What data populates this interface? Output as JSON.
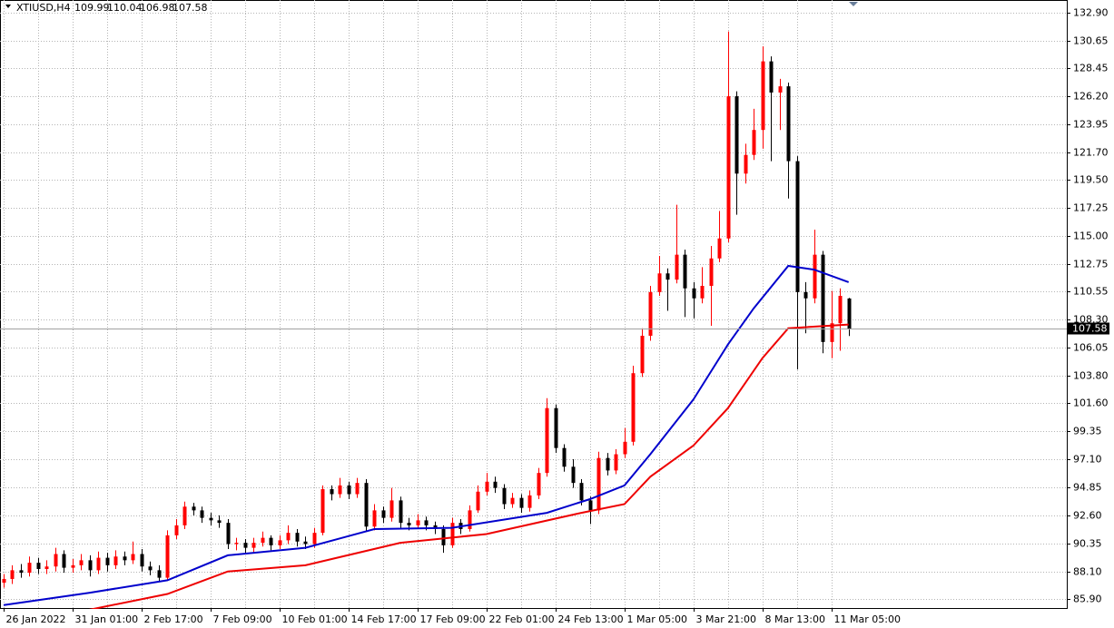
{
  "chart_data": {
    "type": "candlestick",
    "title": "XTIUSD,H4",
    "up_color": "#ff0000",
    "down_color": "#000000",
    "grid": true,
    "xlim": [
      -0.42,
      123.3
    ],
    "ylim": [
      85.17,
      133.92
    ],
    "yticks": [
      {
        "value": 132.9,
        "label": "132.90"
      },
      130.65,
      128.45,
      {
        "value": 126.2,
        "label": "126.20"
      },
      123.95,
      {
        "value": 121.7,
        "label": "121.70"
      },
      {
        "value": 119.5,
        "label": "119.50"
      },
      117.25,
      {
        "value": 115,
        "label": "115.00"
      },
      112.75,
      110.55,
      {
        "value": 108.3,
        "label": "108.30"
      },
      106.05,
      {
        "value": 103.8,
        "label": "103.80"
      },
      {
        "value": 101.6,
        "label": "101.60"
      },
      99.35,
      {
        "value": 97.1,
        "label": "97.10"
      },
      94.85,
      {
        "value": 92.6,
        "label": "92.60"
      },
      90.35,
      {
        "value": 88.1,
        "label": "88.10"
      },
      {
        "value": 85.9,
        "label": "85.90"
      }
    ],
    "categories": [
      "26 Jan 2022",
      null,
      null,
      null,
      null,
      null,
      null,
      null,
      "31 Jan 01:00",
      null,
      null,
      null,
      null,
      null,
      null,
      null,
      "2 Feb 17:00",
      null,
      null,
      null,
      null,
      null,
      null,
      null,
      "7 Feb 09:00",
      null,
      null,
      null,
      null,
      null,
      null,
      null,
      "10 Feb 01:00",
      null,
      null,
      null,
      null,
      null,
      null,
      null,
      "14 Feb 17:00",
      null,
      null,
      null,
      null,
      null,
      null,
      null,
      "17 Feb 09:00",
      null,
      null,
      null,
      null,
      null,
      null,
      null,
      "22 Feb 01:00",
      null,
      null,
      null,
      null,
      null,
      null,
      null,
      "24 Feb 13:00",
      null,
      null,
      null,
      null,
      null,
      null,
      null,
      "1 Mar 05:00",
      null,
      null,
      null,
      null,
      null,
      null,
      null,
      "3 Mar 21:00",
      null,
      null,
      null,
      null,
      null,
      null,
      null,
      "8 Mar 13:00",
      null,
      null,
      null,
      null,
      null,
      null,
      null,
      "11 Mar 05:00",
      null,
      null
    ],
    "open": [
      87.2,
      87.5,
      88.2,
      88.0,
      88.8,
      88.3,
      88.5,
      89.5,
      88.4,
      88.6,
      89.0,
      88.2,
      89.2,
      88.6,
      89.3,
      89.0,
      89.5,
      88.5,
      88.2,
      87.6,
      91.0,
      91.8,
      93.3,
      93.0,
      92.4,
      92.2,
      92.0,
      90.3,
      90.4,
      90.0,
      90.4,
      90.8,
      90.2,
      90.6,
      91.2,
      90.5,
      90.3,
      91.2,
      94.7,
      94.3,
      95.0,
      94.3,
      95.2,
      91.7,
      93.0,
      92.4,
      93.8,
      92.0,
      91.8,
      92.2,
      91.8,
      91.5,
      90.2,
      92.0,
      91.5,
      93.0,
      94.5,
      95.3,
      94.8,
      93.5,
      94.0,
      93.2,
      94.2,
      96.0,
      101.2,
      98.0,
      96.5,
      95.2,
      93.8,
      93.0,
      97.2,
      96.2,
      97.5,
      98.5,
      104.0,
      107.0,
      110.5,
      112.0,
      111.5,
      113.5,
      110.8,
      110.0,
      111.0,
      113.2,
      114.8,
      126.2,
      120.0,
      121.5,
      123.5,
      129.0,
      126.5,
      127.0,
      121.0,
      110.5,
      110.0,
      113.5,
      106.5,
      108.0,
      109.99
    ],
    "high": [
      87.9,
      88.6,
      88.7,
      89.3,
      89.2,
      89.0,
      90.0,
      89.8,
      89.1,
      89.5,
      89.4,
      89.7,
      89.6,
      89.8,
      89.7,
      90.5,
      89.9,
      88.9,
      88.6,
      91.4,
      92.3,
      93.7,
      93.6,
      93.3,
      92.8,
      92.6,
      92.3,
      90.8,
      90.7,
      90.8,
      91.3,
      91.0,
      91.0,
      91.8,
      91.5,
      90.9,
      91.6,
      95.0,
      95.0,
      95.6,
      95.3,
      95.6,
      95.5,
      93.5,
      93.3,
      94.8,
      94.1,
      92.4,
      92.7,
      92.5,
      92.1,
      91.8,
      92.4,
      92.3,
      93.4,
      95.0,
      96.0,
      95.7,
      95.1,
      94.4,
      94.3,
      94.6,
      96.4,
      102.0,
      101.5,
      98.3,
      97.1,
      95.5,
      94.1,
      97.7,
      97.6,
      97.9,
      99.6,
      104.6,
      107.6,
      111.0,
      113.4,
      112.4,
      117.5,
      113.9,
      111.3,
      112.5,
      114.2,
      117.0,
      131.4,
      126.6,
      122.4,
      125.2,
      130.2,
      129.4,
      127.6,
      127.3,
      121.4,
      111.3,
      115.5,
      113.8,
      110.6,
      110.8,
      110.04
    ],
    "low": [
      86.8,
      87.1,
      87.6,
      87.7,
      87.9,
      87.9,
      88.1,
      88.0,
      88.0,
      88.2,
      87.7,
      87.9,
      88.1,
      88.3,
      88.6,
      88.7,
      88.1,
      87.8,
      87.3,
      87.4,
      90.7,
      91.5,
      92.6,
      92.0,
      91.8,
      91.6,
      89.9,
      89.8,
      89.6,
      89.6,
      90.1,
      89.8,
      89.9,
      90.3,
      90.1,
      89.9,
      90.0,
      91.0,
      93.8,
      94.0,
      93.9,
      94.0,
      91.3,
      91.4,
      92.0,
      92.1,
      91.6,
      91.4,
      91.5,
      91.4,
      91.1,
      89.6,
      90.0,
      91.1,
      91.3,
      92.8,
      94.2,
      94.4,
      93.1,
      93.2,
      92.8,
      92.9,
      93.9,
      95.7,
      97.6,
      96.1,
      94.8,
      93.4,
      91.9,
      92.7,
      95.8,
      95.9,
      97.2,
      98.2,
      103.7,
      106.6,
      110.2,
      109.0,
      111.2,
      108.5,
      108.4,
      109.6,
      107.8,
      112.9,
      114.5,
      116.7,
      119.2,
      121.1,
      122.0,
      121.0,
      123.5,
      118.0,
      104.3,
      107.2,
      109.6,
      105.6,
      105.2,
      105.8,
      106.98
    ],
    "close": [
      87.5,
      88.2,
      88.0,
      88.8,
      88.3,
      88.5,
      89.5,
      88.4,
      88.6,
      89.0,
      88.2,
      89.2,
      88.6,
      89.3,
      89.0,
      89.5,
      88.5,
      88.2,
      87.6,
      91.0,
      91.8,
      93.3,
      93.0,
      92.4,
      92.2,
      92.0,
      90.3,
      90.4,
      90.0,
      90.4,
      90.8,
      90.2,
      90.6,
      91.2,
      90.5,
      90.3,
      91.2,
      94.7,
      94.3,
      95.0,
      94.3,
      95.2,
      91.7,
      93.0,
      92.4,
      93.8,
      92.0,
      91.8,
      92.2,
      91.8,
      91.5,
      90.2,
      92.0,
      91.5,
      93.0,
      94.5,
      95.3,
      94.8,
      93.5,
      94.0,
      93.2,
      94.2,
      96.0,
      101.2,
      98.0,
      96.5,
      95.2,
      93.8,
      93.0,
      97.2,
      96.2,
      97.5,
      98.5,
      104.0,
      107.0,
      110.5,
      112.0,
      111.5,
      113.5,
      110.8,
      110.0,
      111.0,
      113.2,
      114.8,
      126.2,
      120.0,
      121.5,
      123.5,
      129.0,
      126.5,
      127.0,
      121.0,
      110.5,
      110.0,
      113.5,
      106.5,
      108.0,
      110.2,
      107.58
    ],
    "lines": [
      {
        "color": "#0000cc",
        "x": [
          0,
          10,
          19,
          26,
          35,
          43,
          52,
          63,
          68,
          72,
          75,
          80,
          84,
          87,
          91,
          94,
          98
        ],
        "values": [
          85.4,
          86.4,
          87.4,
          89.4,
          90.0,
          91.5,
          91.6,
          92.8,
          93.9,
          95.0,
          97.5,
          101.9,
          106.3,
          109.2,
          112.6,
          112.3,
          111.3
        ]
      },
      {
        "color": "#ee0000",
        "x": [
          9,
          19,
          26,
          35,
          46,
          56,
          67,
          72,
          75,
          80,
          84,
          88,
          91,
          98
        ],
        "values": [
          84.9,
          86.3,
          88.1,
          88.6,
          90.4,
          91.1,
          92.8,
          93.5,
          95.7,
          98.2,
          101.2,
          105.2,
          107.6,
          107.9
        ]
      }
    ]
  }
}
